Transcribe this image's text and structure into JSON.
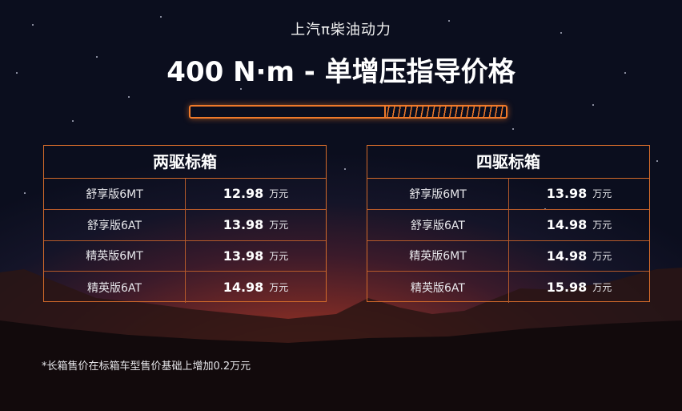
{
  "header": {
    "brand": "上汽π柴油动力",
    "title": "400 N·m - 单增压指导价格"
  },
  "progress": {
    "filled_fraction": 0.62,
    "color": "#f07a2a"
  },
  "tables": [
    {
      "title": "两驱标箱",
      "rows": [
        {
          "model": "舒享版6MT",
          "price": "12.98",
          "unit": "万元"
        },
        {
          "model": "舒享版6AT",
          "price": "13.98",
          "unit": "万元"
        },
        {
          "model": "精英版6MT",
          "price": "13.98",
          "unit": "万元"
        },
        {
          "model": "精英版6AT",
          "price": "14.98",
          "unit": "万元"
        }
      ]
    },
    {
      "title": "四驱标箱",
      "rows": [
        {
          "model": "舒享版6MT",
          "price": "13.98",
          "unit": "万元"
        },
        {
          "model": "舒享版6AT",
          "price": "14.98",
          "unit": "万元"
        },
        {
          "model": "精英版6MT",
          "price": "14.98",
          "unit": "万元"
        },
        {
          "model": "精英版6AT",
          "price": "15.98",
          "unit": "万元"
        }
      ]
    }
  ],
  "footnote": "*长箱售价在标箱车型售价基础上增加0.2万元",
  "colors": {
    "accent": "#f07a2a",
    "border": "#d26a2a"
  }
}
